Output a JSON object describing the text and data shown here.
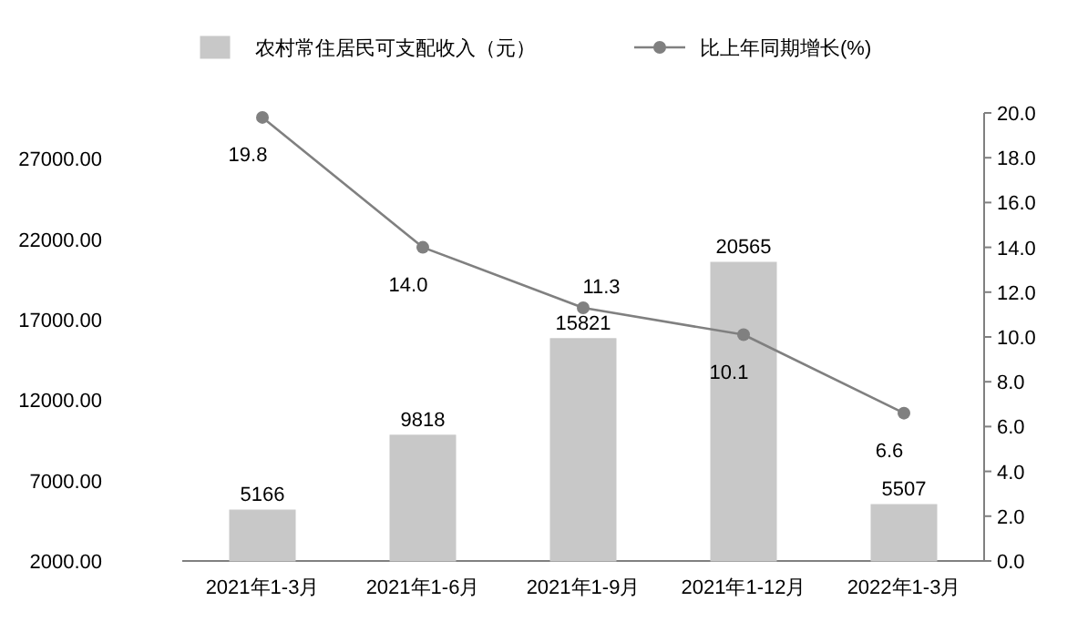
{
  "chart_data": {
    "type": "bar",
    "categories": [
      "2021年1-3月",
      "2021年1-6月",
      "2021年1-9月",
      "2021年1-12月",
      "2022年1-3月"
    ],
    "series": [
      {
        "name": "农村常住居民可支配收入（元）",
        "color": "#c8c8c8",
        "values": [
          5166,
          9818,
          15821,
          20565,
          5507
        ],
        "value_labels": [
          "5166",
          "9818",
          "15821",
          "20565",
          "5507"
        ]
      },
      {
        "name": "比上年同期增长(%)",
        "type": "line",
        "axis": "y2",
        "color": "#808080",
        "values": [
          19.8,
          14.0,
          11.3,
          10.1,
          6.6
        ],
        "value_labels": [
          "19.8",
          "14.0",
          "11.3",
          "10.1",
          "6.6"
        ]
      }
    ],
    "ylim": [
      2000,
      29850
    ],
    "yticks": [
      {
        "value": 2000,
        "label": "2000.00"
      },
      {
        "value": 7000,
        "label": "7000.00"
      },
      {
        "value": 12000,
        "label": "12000.00"
      },
      {
        "value": 17000,
        "label": "17000.00"
      },
      {
        "value": 22000,
        "label": "22000.00"
      },
      {
        "value": 27000,
        "label": "27000.00"
      }
    ],
    "y2lim": [
      0,
      20
    ],
    "y2ticks": [
      {
        "value": 0,
        "label": "0.0"
      },
      {
        "value": 2,
        "label": "2.0"
      },
      {
        "value": 4,
        "label": "4.0"
      },
      {
        "value": 6,
        "label": "6.0"
      },
      {
        "value": 8,
        "label": "8.0"
      },
      {
        "value": 10,
        "label": "10.0"
      },
      {
        "value": 12,
        "label": "12.0"
      },
      {
        "value": 14,
        "label": "14.0"
      },
      {
        "value": 16,
        "label": "16.0"
      },
      {
        "value": 18,
        "label": "18.0"
      },
      {
        "value": 20,
        "label": "20.0"
      }
    ],
    "legend": "top",
    "marker": "circle",
    "grid": false
  }
}
